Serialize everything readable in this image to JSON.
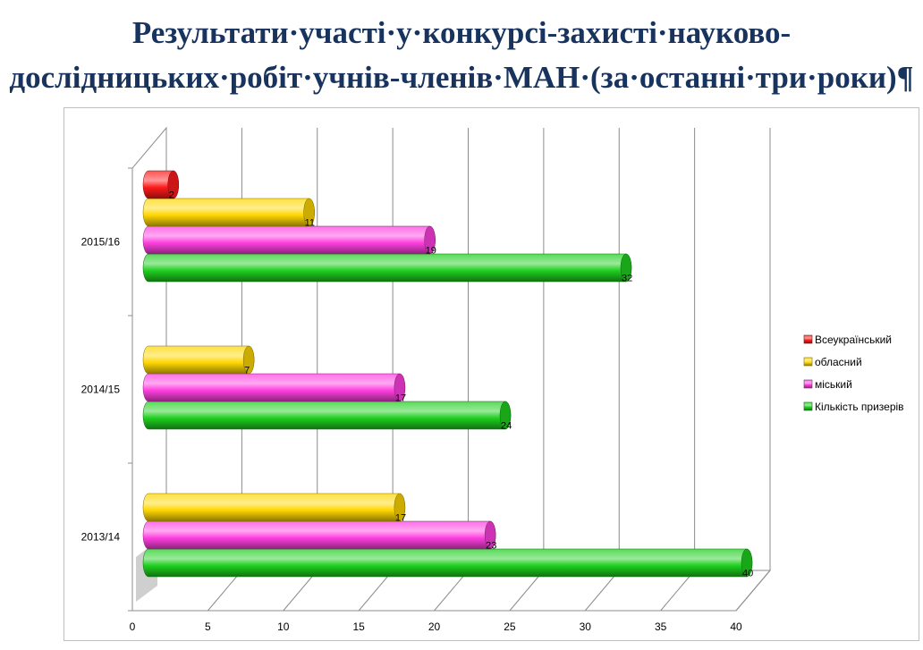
{
  "title": {
    "line1": "Результати·участі·у·конкурсі-захисті·науково-",
    "line2": "дослідницьких·робіт·учнів-членів·МАН·(за·останні·три·роки)¶"
  },
  "chart_data": {
    "type": "bar",
    "orientation": "horizontal",
    "style": "3d-cylinder",
    "categories": [
      "2013/14",
      "2014/15",
      "2015/16"
    ],
    "series": [
      {
        "name": "Кількість призерів",
        "color": "#1fcf1f",
        "values": [
          40,
          24,
          32
        ]
      },
      {
        "name": "міський",
        "color": "#ff3fe0",
        "values": [
          23,
          17,
          19
        ]
      },
      {
        "name": "обласний",
        "color": "#ffd700",
        "values": [
          17,
          7,
          11
        ]
      },
      {
        "name": "Всеукраїнський",
        "color": "#ff1a1a",
        "values": [
          null,
          null,
          2
        ]
      }
    ],
    "x_ticks": [
      0,
      5,
      10,
      15,
      20,
      25,
      30,
      35,
      40
    ],
    "xlim": [
      0,
      40
    ],
    "grid": true,
    "legend": "right",
    "data_labels": true
  }
}
